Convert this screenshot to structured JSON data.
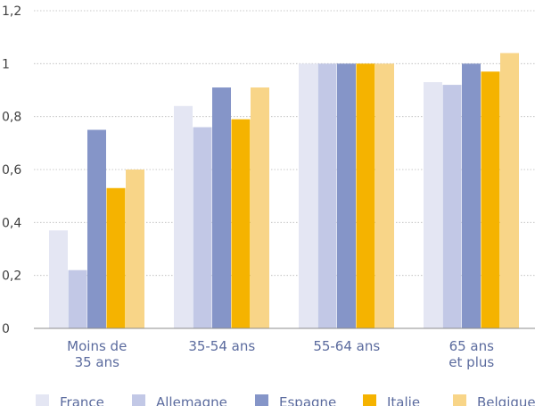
{
  "chart_data": {
    "type": "bar",
    "title": "",
    "xlabel": "",
    "ylabel": "",
    "ylim": [
      0,
      1.2
    ],
    "yticks": [
      "0",
      "0,2",
      "0,4",
      "0,6",
      "0,8",
      "1",
      "1,2"
    ],
    "ytick_values": [
      0,
      0.2,
      0.4,
      0.6,
      0.8,
      1.0,
      1.2
    ],
    "grid": true,
    "legend_position": "bottom",
    "categories": [
      [
        "Moins de",
        "35 ans"
      ],
      [
        "35-54 ans"
      ],
      [
        "55-64 ans"
      ],
      [
        "65 ans",
        "et plus"
      ]
    ],
    "series": [
      {
        "name": "France",
        "color": "#e4e6f3",
        "values": [
          0.37,
          0.84,
          1.0,
          0.93
        ]
      },
      {
        "name": "Allemagne",
        "color": "#c2c8e6",
        "values": [
          0.22,
          0.76,
          1.0,
          0.92
        ]
      },
      {
        "name": "Espagne",
        "color": "#8595c8",
        "values": [
          0.75,
          0.91,
          1.0,
          1.0
        ]
      },
      {
        "name": "Italie",
        "color": "#f5b300",
        "values": [
          0.53,
          0.79,
          1.0,
          0.97
        ]
      },
      {
        "name": "Belgique",
        "color": "#f8d588",
        "values": [
          0.6,
          0.91,
          1.0,
          1.04
        ]
      }
    ]
  }
}
